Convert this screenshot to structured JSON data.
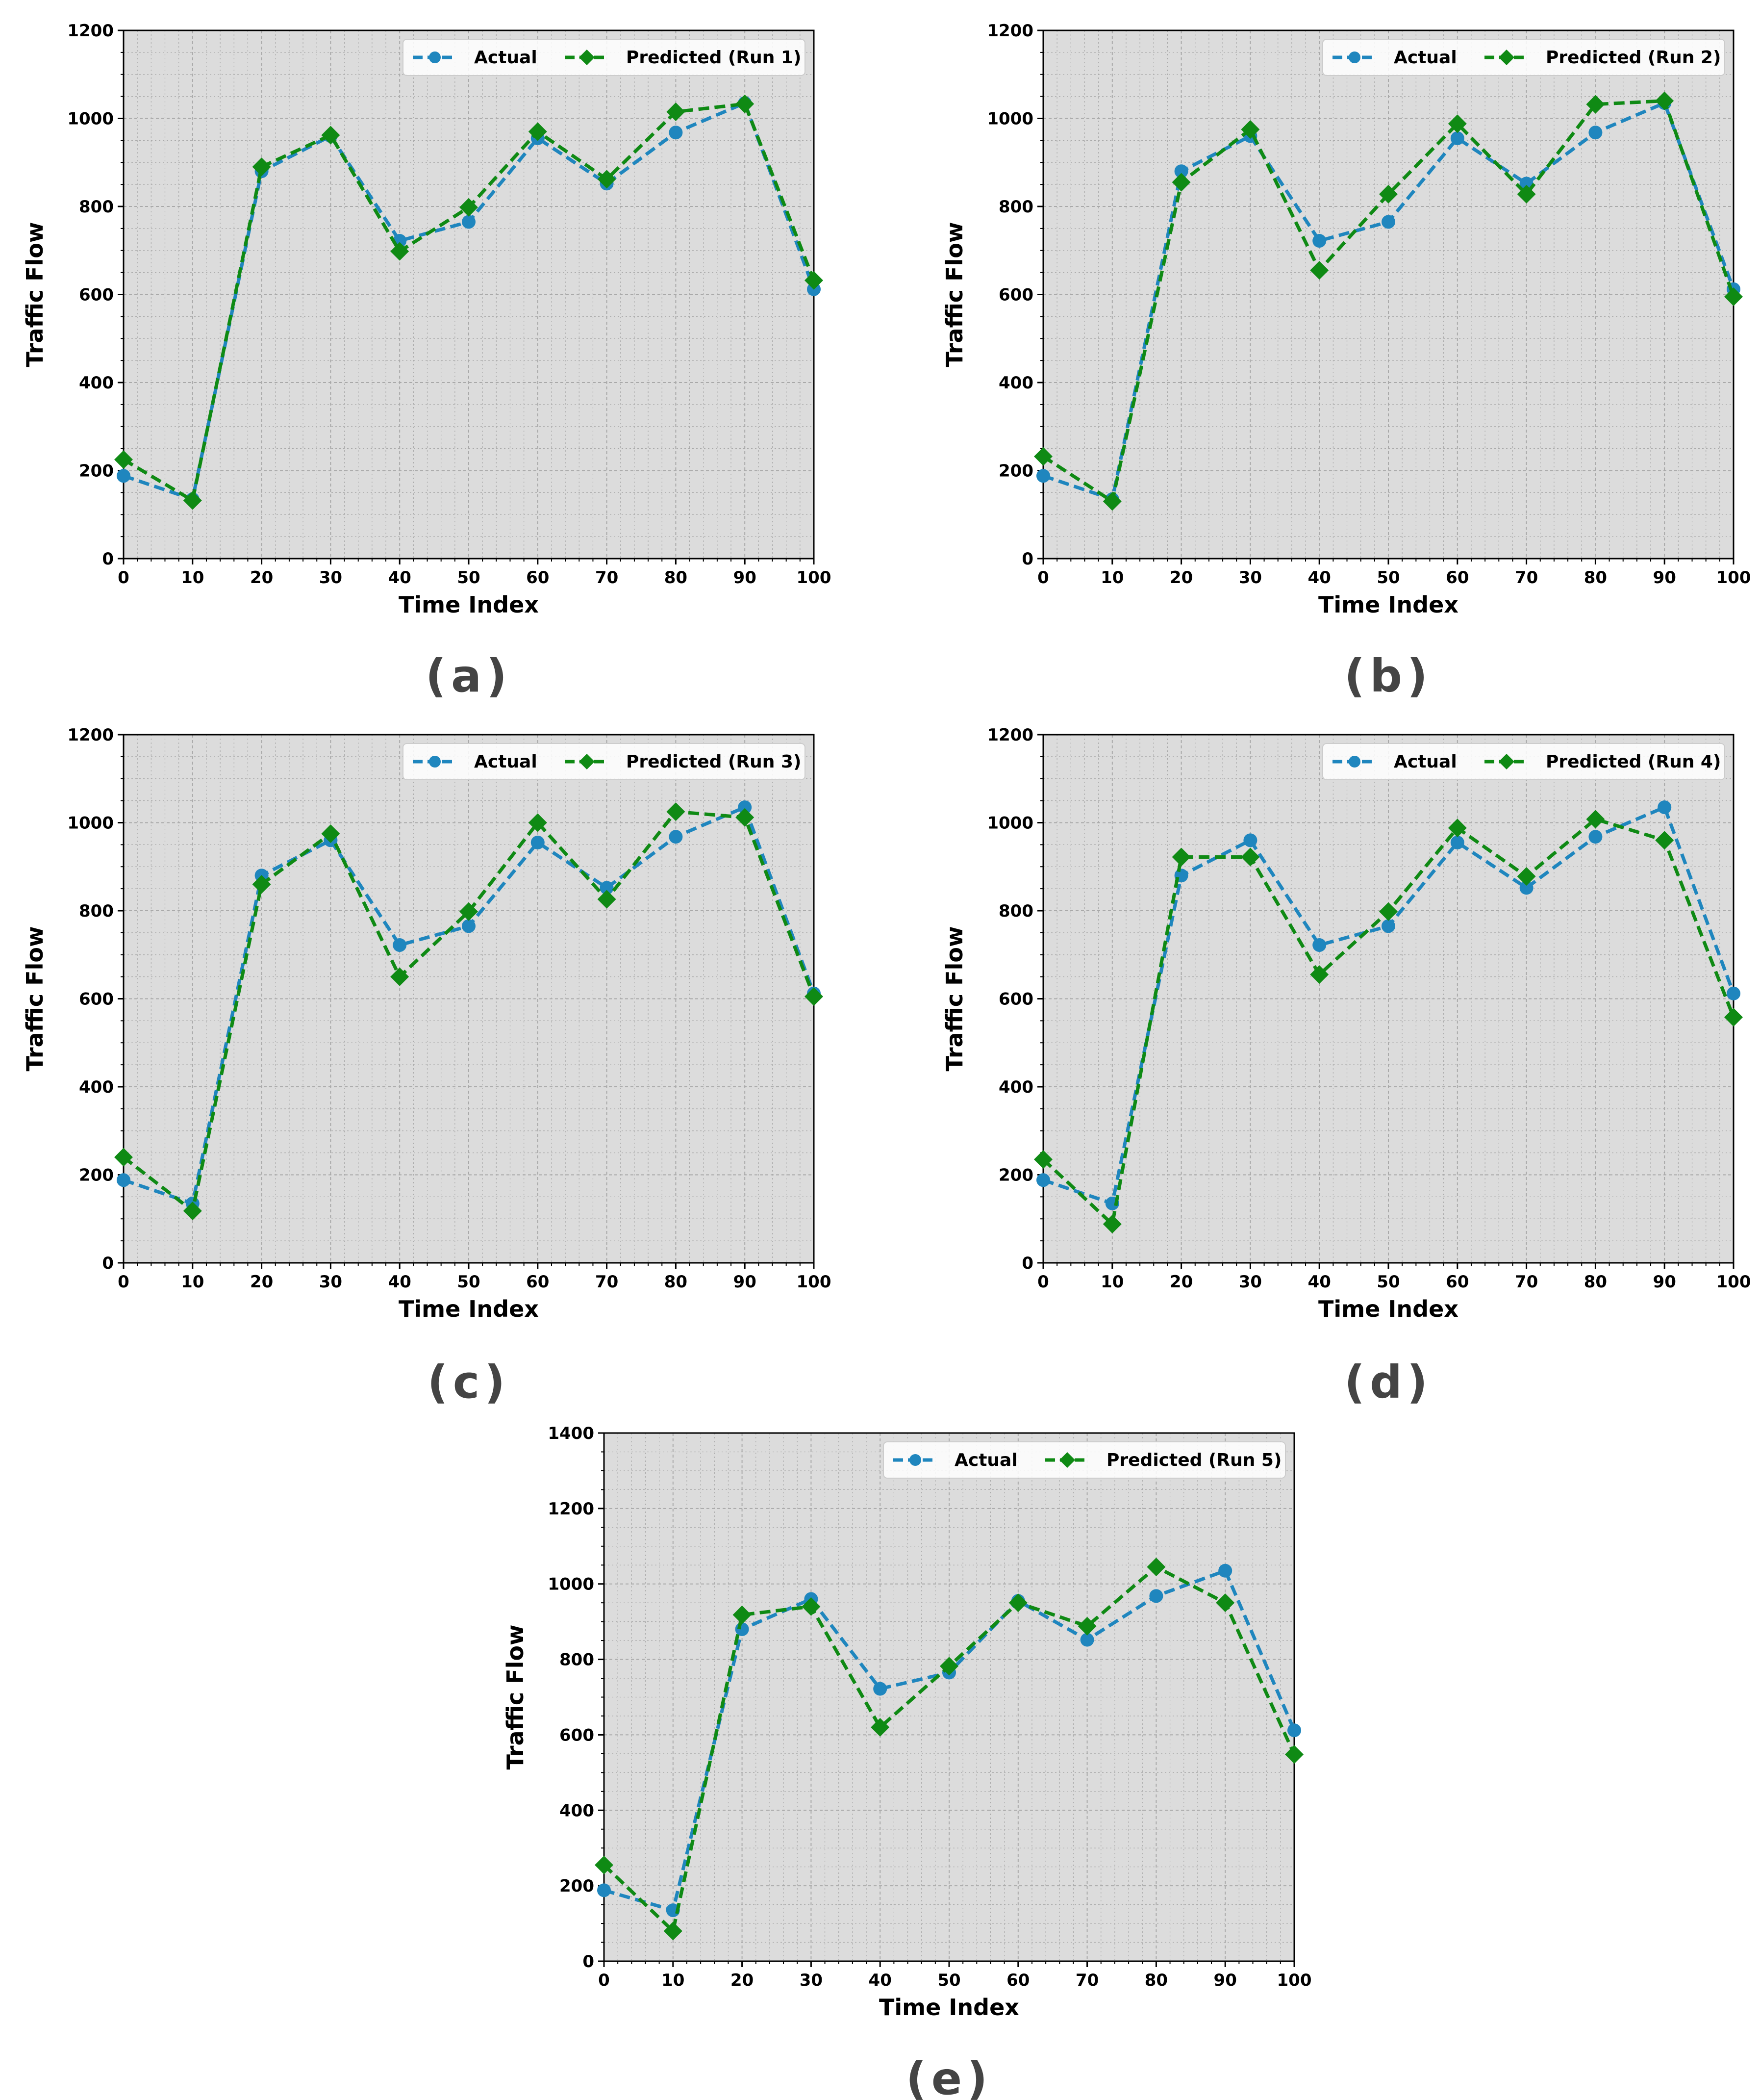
{
  "figure": {
    "colors": {
      "actual": "#1f86be",
      "predicted": "#0f8a14",
      "plot_bg": "#dcdcdc",
      "grid": "#a9a9a9"
    }
  },
  "chart_data": [
    {
      "type": "line",
      "panel_label": "(a)",
      "xlabel": "Time Index",
      "ylabel": "Traffic Flow",
      "xlim": [
        0,
        100
      ],
      "ylim": [
        0,
        1200
      ],
      "xticks": [
        0,
        10,
        20,
        30,
        40,
        50,
        60,
        70,
        80,
        90,
        100
      ],
      "yticks": [
        0,
        200,
        400,
        600,
        800,
        1000,
        1200
      ],
      "grid": true,
      "legend_position": "top-right",
      "x": [
        0,
        10,
        20,
        30,
        40,
        50,
        60,
        70,
        80,
        90,
        100
      ],
      "series": [
        {
          "name": "Actual",
          "marker": "circle",
          "values": [
            188,
            135,
            880,
            960,
            722,
            765,
            955,
            852,
            968,
            1035,
            612
          ]
        },
        {
          "name": "Predicted (Run 1)",
          "marker": "diamond",
          "values": [
            225,
            132,
            890,
            962,
            698,
            798,
            970,
            862,
            1015,
            1033,
            632
          ]
        }
      ]
    },
    {
      "type": "line",
      "panel_label": "(b)",
      "xlabel": "Time Index",
      "ylabel": "Traffic Flow",
      "xlim": [
        0,
        100
      ],
      "ylim": [
        0,
        1200
      ],
      "xticks": [
        0,
        10,
        20,
        30,
        40,
        50,
        60,
        70,
        80,
        90,
        100
      ],
      "yticks": [
        0,
        200,
        400,
        600,
        800,
        1000,
        1200
      ],
      "grid": true,
      "legend_position": "top-right",
      "x": [
        0,
        10,
        20,
        30,
        40,
        50,
        60,
        70,
        80,
        90,
        100
      ],
      "series": [
        {
          "name": "Actual",
          "marker": "circle",
          "values": [
            188,
            135,
            880,
            960,
            722,
            765,
            955,
            852,
            968,
            1035,
            612
          ]
        },
        {
          "name": "Predicted (Run 2)",
          "marker": "diamond",
          "values": [
            232,
            130,
            855,
            975,
            655,
            828,
            988,
            828,
            1032,
            1040,
            595
          ]
        }
      ]
    },
    {
      "type": "line",
      "panel_label": "(c)",
      "xlabel": "Time Index",
      "ylabel": "Traffic Flow",
      "xlim": [
        0,
        100
      ],
      "ylim": [
        0,
        1200
      ],
      "xticks": [
        0,
        10,
        20,
        30,
        40,
        50,
        60,
        70,
        80,
        90,
        100
      ],
      "yticks": [
        0,
        200,
        400,
        600,
        800,
        1000,
        1200
      ],
      "grid": true,
      "legend_position": "top-right",
      "x": [
        0,
        10,
        20,
        30,
        40,
        50,
        60,
        70,
        80,
        90,
        100
      ],
      "series": [
        {
          "name": "Actual",
          "marker": "circle",
          "values": [
            188,
            135,
            880,
            960,
            722,
            765,
            955,
            852,
            968,
            1035,
            612
          ]
        },
        {
          "name": "Predicted (Run 3)",
          "marker": "diamond",
          "values": [
            240,
            118,
            860,
            975,
            650,
            798,
            1000,
            826,
            1025,
            1012,
            605
          ]
        }
      ]
    },
    {
      "type": "line",
      "panel_label": "(d)",
      "xlabel": "Time Index",
      "ylabel": "Traffic Flow",
      "xlim": [
        0,
        100
      ],
      "ylim": [
        0,
        1200
      ],
      "xticks": [
        0,
        10,
        20,
        30,
        40,
        50,
        60,
        70,
        80,
        90,
        100
      ],
      "yticks": [
        0,
        200,
        400,
        600,
        800,
        1000,
        1200
      ],
      "grid": true,
      "legend_position": "top-right",
      "x": [
        0,
        10,
        20,
        30,
        40,
        50,
        60,
        70,
        80,
        90,
        100
      ],
      "series": [
        {
          "name": "Actual",
          "marker": "circle",
          "values": [
            188,
            135,
            880,
            960,
            722,
            765,
            955,
            852,
            968,
            1035,
            612
          ]
        },
        {
          "name": "Predicted (Run 4)",
          "marker": "diamond",
          "values": [
            235,
            88,
            922,
            922,
            655,
            798,
            988,
            878,
            1008,
            960,
            558
          ]
        }
      ]
    },
    {
      "type": "line",
      "panel_label": "(e)",
      "xlabel": "Time Index",
      "ylabel": "Traffic Flow",
      "xlim": [
        0,
        100
      ],
      "ylim": [
        0,
        1400
      ],
      "xticks": [
        0,
        10,
        20,
        30,
        40,
        50,
        60,
        70,
        80,
        90,
        100
      ],
      "yticks": [
        0,
        200,
        400,
        600,
        800,
        1000,
        1200,
        1400
      ],
      "grid": true,
      "legend_position": "top-right",
      "x": [
        0,
        10,
        20,
        30,
        40,
        50,
        60,
        70,
        80,
        90,
        100
      ],
      "series": [
        {
          "name": "Actual",
          "marker": "circle",
          "values": [
            188,
            135,
            880,
            960,
            722,
            765,
            955,
            852,
            968,
            1035,
            612
          ]
        },
        {
          "name": "Predicted (Run 5)",
          "marker": "diamond",
          "values": [
            255,
            80,
            918,
            940,
            620,
            782,
            950,
            888,
            1045,
            950,
            548
          ]
        }
      ]
    }
  ]
}
